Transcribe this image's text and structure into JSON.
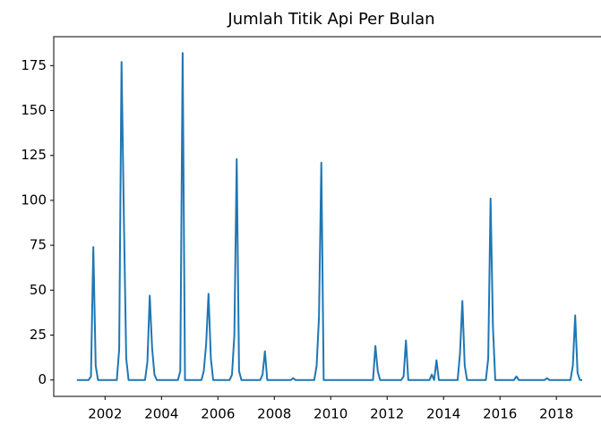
{
  "chart_data": {
    "type": "line",
    "title": "Jumlah Titik Api Per Bulan",
    "x": [
      "2001-01",
      "2001-02",
      "2001-03",
      "2001-04",
      "2001-05",
      "2001-06",
      "2001-07",
      "2001-08",
      "2001-09",
      "2001-10",
      "2001-11",
      "2001-12",
      "2002-01",
      "2002-02",
      "2002-03",
      "2002-04",
      "2002-05",
      "2002-06",
      "2002-07",
      "2002-08",
      "2002-09",
      "2002-10",
      "2002-11",
      "2002-12",
      "2003-01",
      "2003-02",
      "2003-03",
      "2003-04",
      "2003-05",
      "2003-06",
      "2003-07",
      "2003-08",
      "2003-09",
      "2003-10",
      "2003-11",
      "2003-12",
      "2004-01",
      "2004-02",
      "2004-03",
      "2004-04",
      "2004-05",
      "2004-06",
      "2004-07",
      "2004-08",
      "2004-09",
      "2004-10",
      "2004-11",
      "2004-12",
      "2005-01",
      "2005-02",
      "2005-03",
      "2005-04",
      "2005-05",
      "2005-06",
      "2005-07",
      "2005-08",
      "2005-09",
      "2005-10",
      "2005-11",
      "2005-12",
      "2006-01",
      "2006-02",
      "2006-03",
      "2006-04",
      "2006-05",
      "2006-06",
      "2006-07",
      "2006-08",
      "2006-09",
      "2006-10",
      "2006-11",
      "2006-12",
      "2007-01",
      "2007-02",
      "2007-03",
      "2007-04",
      "2007-05",
      "2007-06",
      "2007-07",
      "2007-08",
      "2007-09",
      "2007-10",
      "2007-11",
      "2007-12",
      "2008-01",
      "2008-02",
      "2008-03",
      "2008-04",
      "2008-05",
      "2008-06",
      "2008-07",
      "2008-08",
      "2008-09",
      "2008-10",
      "2008-11",
      "2008-12",
      "2009-01",
      "2009-02",
      "2009-03",
      "2009-04",
      "2009-05",
      "2009-06",
      "2009-07",
      "2009-08",
      "2009-09",
      "2009-10",
      "2009-11",
      "2009-12",
      "2010-01",
      "2010-02",
      "2010-03",
      "2010-04",
      "2010-05",
      "2010-06",
      "2010-07",
      "2010-08",
      "2010-09",
      "2010-10",
      "2010-11",
      "2010-12",
      "2011-01",
      "2011-02",
      "2011-03",
      "2011-04",
      "2011-05",
      "2011-06",
      "2011-07",
      "2011-08",
      "2011-09",
      "2011-10",
      "2011-11",
      "2011-12",
      "2012-01",
      "2012-02",
      "2012-03",
      "2012-04",
      "2012-05",
      "2012-06",
      "2012-07",
      "2012-08",
      "2012-09",
      "2012-10",
      "2012-11",
      "2012-12",
      "2013-01",
      "2013-02",
      "2013-03",
      "2013-04",
      "2013-05",
      "2013-06",
      "2013-07",
      "2013-08",
      "2013-09",
      "2013-10",
      "2013-11",
      "2013-12",
      "2014-01",
      "2014-02",
      "2014-03",
      "2014-04",
      "2014-05",
      "2014-06",
      "2014-07",
      "2014-08",
      "2014-09",
      "2014-10",
      "2014-11",
      "2014-12",
      "2015-01",
      "2015-02",
      "2015-03",
      "2015-04",
      "2015-05",
      "2015-06",
      "2015-07",
      "2015-08",
      "2015-09",
      "2015-10",
      "2015-11",
      "2015-12",
      "2016-01",
      "2016-02",
      "2016-03",
      "2016-04",
      "2016-05",
      "2016-06",
      "2016-07",
      "2016-08",
      "2016-09",
      "2016-10",
      "2016-11",
      "2016-12",
      "2017-01",
      "2017-02",
      "2017-03",
      "2017-04",
      "2017-05",
      "2017-06",
      "2017-07",
      "2017-08",
      "2017-09",
      "2017-10",
      "2017-11",
      "2017-12",
      "2018-01",
      "2018-02",
      "2018-03",
      "2018-04",
      "2018-05",
      "2018-06",
      "2018-07",
      "2018-08",
      "2018-09",
      "2018-10",
      "2018-11",
      "2018-12"
    ],
    "series": [
      {
        "color": "#1f77b4",
        "values": [
          0,
          0,
          0,
          0,
          0,
          0,
          2,
          74,
          8,
          0,
          0,
          0,
          0,
          0,
          0,
          0,
          0,
          0,
          17,
          177,
          90,
          12,
          0,
          0,
          0,
          0,
          0,
          0,
          0,
          0,
          10,
          47,
          18,
          3,
          0,
          0,
          0,
          0,
          0,
          0,
          0,
          0,
          0,
          0,
          5,
          182,
          0,
          0,
          0,
          0,
          0,
          0,
          0,
          0,
          5,
          20,
          48,
          12,
          0,
          0,
          0,
          0,
          0,
          0,
          0,
          0,
          3,
          25,
          123,
          5,
          0,
          0,
          0,
          0,
          0,
          0,
          0,
          0,
          0,
          3,
          16,
          0,
          0,
          0,
          0,
          0,
          0,
          0,
          0,
          0,
          0,
          0,
          1,
          0,
          0,
          0,
          0,
          0,
          0,
          0,
          0,
          0,
          8,
          35,
          121,
          0,
          0,
          0,
          0,
          0,
          0,
          0,
          0,
          0,
          0,
          0,
          0,
          0,
          0,
          0,
          0,
          0,
          0,
          0,
          0,
          0,
          0,
          19,
          5,
          0,
          0,
          0,
          0,
          0,
          0,
          0,
          0,
          0,
          0,
          2,
          22,
          0,
          0,
          0,
          0,
          0,
          0,
          0,
          0,
          0,
          0,
          3,
          0,
          11,
          0,
          0,
          0,
          0,
          0,
          0,
          0,
          0,
          0,
          15,
          44,
          8,
          0,
          0,
          0,
          0,
          0,
          0,
          0,
          0,
          0,
          12,
          101,
          30,
          0,
          0,
          0,
          0,
          0,
          0,
          0,
          0,
          0,
          2,
          0,
          0,
          0,
          0,
          0,
          0,
          0,
          0,
          0,
          0,
          0,
          0,
          1,
          0,
          0,
          0,
          0,
          0,
          0,
          0,
          0,
          0,
          0,
          8,
          36,
          4,
          0,
          0
        ]
      }
    ],
    "xlim": [
      2000.18,
      2019.55
    ],
    "xticks": [
      2002,
      2004,
      2006,
      2008,
      2010,
      2012,
      2014,
      2016,
      2018
    ],
    "ylim": [
      -9.1,
      191.1
    ],
    "yticks": [
      0,
      25,
      50,
      75,
      100,
      125,
      150,
      175
    ]
  }
}
